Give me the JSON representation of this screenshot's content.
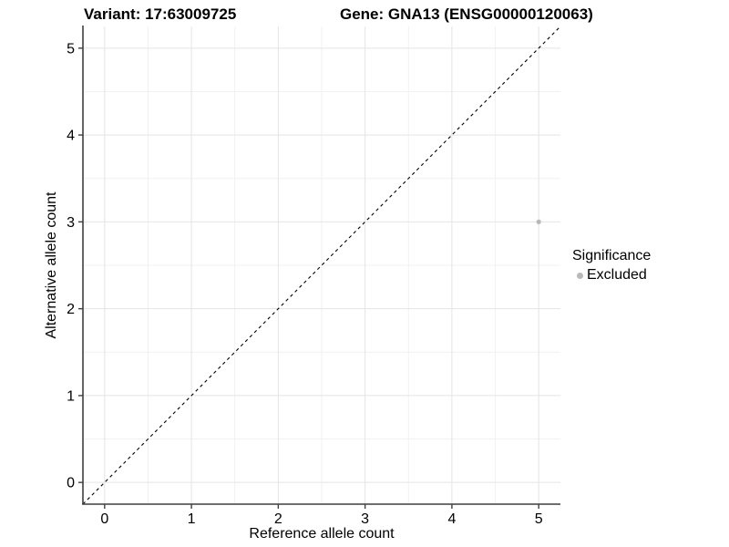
{
  "chart_data": {
    "type": "scatter",
    "title_left": "Variant: 17:63009725",
    "title_right": "Gene: GNA13 (ENSG00000120063)",
    "xlabel": "Reference allele count",
    "ylabel": "Alternative allele count",
    "xlim": [
      -0.25,
      5.25
    ],
    "ylim": [
      -0.25,
      5.25
    ],
    "x_ticks": [
      0,
      1,
      2,
      3,
      4,
      5
    ],
    "y_ticks": [
      0,
      1,
      2,
      3,
      4,
      5
    ],
    "grid": "major+minor",
    "legend_position": "right",
    "series": [
      {
        "name": "Excluded",
        "color": "#b9b9b9",
        "point_radius": 2.6,
        "points": [
          {
            "x": 5,
            "y": 3
          }
        ]
      }
    ],
    "reference_line": {
      "kind": "identity y=x",
      "style": "dashed",
      "color": "#000000"
    },
    "legend": {
      "title": "Significance",
      "entries": [
        {
          "label": "Excluded",
          "color": "#b9b9b9"
        }
      ]
    },
    "colors": {
      "background": "#ffffff",
      "grid_major": "#e4e4e4",
      "grid_minor": "#f1f1f1",
      "axis": "#3f3f3f",
      "tick_text": "#000000"
    }
  }
}
